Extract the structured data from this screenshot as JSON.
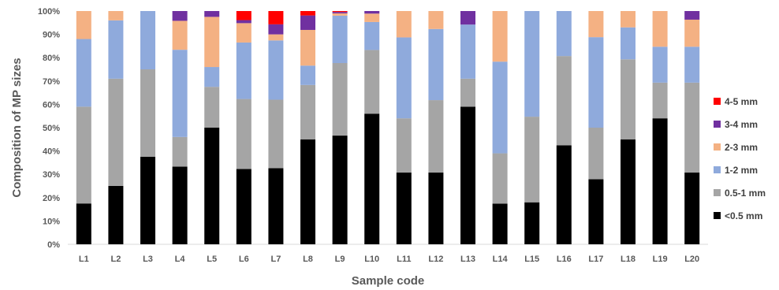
{
  "chart_data": {
    "type": "bar",
    "stacked": true,
    "normalized": true,
    "xlabel": "Sample code",
    "ylabel": "Composition of MP sizes",
    "ylim": [
      0,
      100
    ],
    "yticks": [
      "0%",
      "10%",
      "20%",
      "30%",
      "40%",
      "50%",
      "60%",
      "70%",
      "80%",
      "90%",
      "100%"
    ],
    "categories": [
      "L1",
      "L2",
      "L3",
      "L4",
      "L5",
      "L6",
      "L7",
      "L8",
      "L9",
      "L10",
      "L11",
      "L12",
      "L13",
      "L14",
      "L15",
      "L16",
      "L17",
      "L18",
      "L19",
      "L20"
    ],
    "legend_position": "right",
    "series": [
      {
        "name": "<0.5 mm",
        "color": "#000000",
        "values": [
          17.5,
          25,
          37.5,
          33.3,
          50,
          32.3,
          32.6,
          45,
          46.6,
          56,
          30.8,
          30.8,
          59,
          17.4,
          18,
          42.4,
          27.9,
          45,
          54,
          30.8
        ]
      },
      {
        "name": "0.5-1 mm",
        "color": "#a5a5a5",
        "values": [
          41.5,
          46,
          37.5,
          12.7,
          17.5,
          30,
          29.4,
          23.3,
          31.1,
          27.3,
          23.2,
          31,
          12,
          21.6,
          36.7,
          38.3,
          22.1,
          34.3,
          15.3,
          38.5
        ]
      },
      {
        "name": "1-2 mm",
        "color": "#8faadc",
        "values": [
          29,
          25,
          25,
          37.4,
          8.5,
          24.2,
          25.4,
          8.3,
          20.3,
          12,
          34.7,
          30.5,
          23.2,
          39.3,
          45.3,
          19.3,
          38.8,
          13.7,
          15.4,
          15.4
        ]
      },
      {
        "name": "2-3 mm",
        "color": "#f4b183",
        "values": [
          12,
          4,
          0,
          12.4,
          21.5,
          8.3,
          2.6,
          15.3,
          1,
          3.6,
          11.3,
          7.7,
          0,
          21.7,
          0,
          0,
          11.2,
          7,
          15.3,
          11.6
        ]
      },
      {
        "name": "3-4 mm",
        "color": "#7030a0",
        "values": [
          0,
          0,
          0,
          4.2,
          2.5,
          1.3,
          4.3,
          6.2,
          0.6,
          1.1,
          0,
          0,
          5.8,
          0,
          0,
          0,
          0,
          0,
          0,
          3.7
        ]
      },
      {
        "name": "4-5 mm",
        "color": "#ff0000",
        "values": [
          0,
          0,
          0,
          0,
          0,
          3.9,
          5.7,
          1.9,
          0.4,
          0,
          0,
          0,
          0,
          0,
          0,
          0,
          0,
          0,
          0,
          0
        ]
      }
    ]
  }
}
